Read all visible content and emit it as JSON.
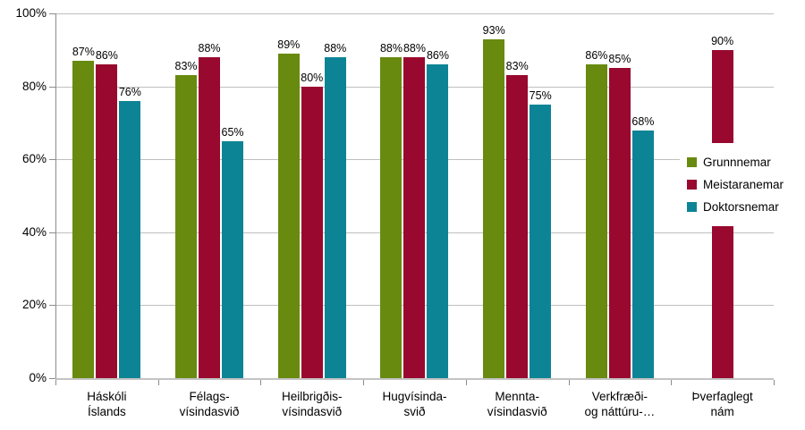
{
  "chart_data": {
    "type": "bar",
    "title": "",
    "xlabel": "",
    "ylabel": "",
    "ylim": [
      0,
      100
    ],
    "yticks": [
      0,
      20,
      40,
      60,
      80,
      100
    ],
    "ytick_format": "{v}%",
    "value_label_format": "{v}%",
    "grid": true,
    "legend_position": "right-inside-plot",
    "categories": [
      [
        "Háskóli",
        "Íslands"
      ],
      [
        "Félags-",
        "vísindasvið"
      ],
      [
        "Heilbrigðis-",
        "vísindasvið"
      ],
      [
        "Hugvísinda-",
        "svið"
      ],
      [
        "Mennta-",
        "vísindasvið"
      ],
      [
        "Verkfræði-",
        "og náttúru-…"
      ],
      [
        "Þverfaglegt",
        "nám"
      ]
    ],
    "series": [
      {
        "name": "Grunnnemar",
        "color": "#688a0f",
        "values": [
          87,
          83,
          89,
          88,
          93,
          86,
          null
        ]
      },
      {
        "name": "Meistaranemar",
        "color": "#99082e",
        "values": [
          86,
          88,
          80,
          88,
          83,
          85,
          90
        ]
      },
      {
        "name": "Doktorsnemar",
        "color": "#0d8495",
        "values": [
          76,
          65,
          88,
          86,
          75,
          68,
          null
        ]
      }
    ]
  },
  "colors": {
    "gridline": "#bfbfbf",
    "axis": "#8c8c8c",
    "text": "#000000",
    "background": "#ffffff"
  }
}
